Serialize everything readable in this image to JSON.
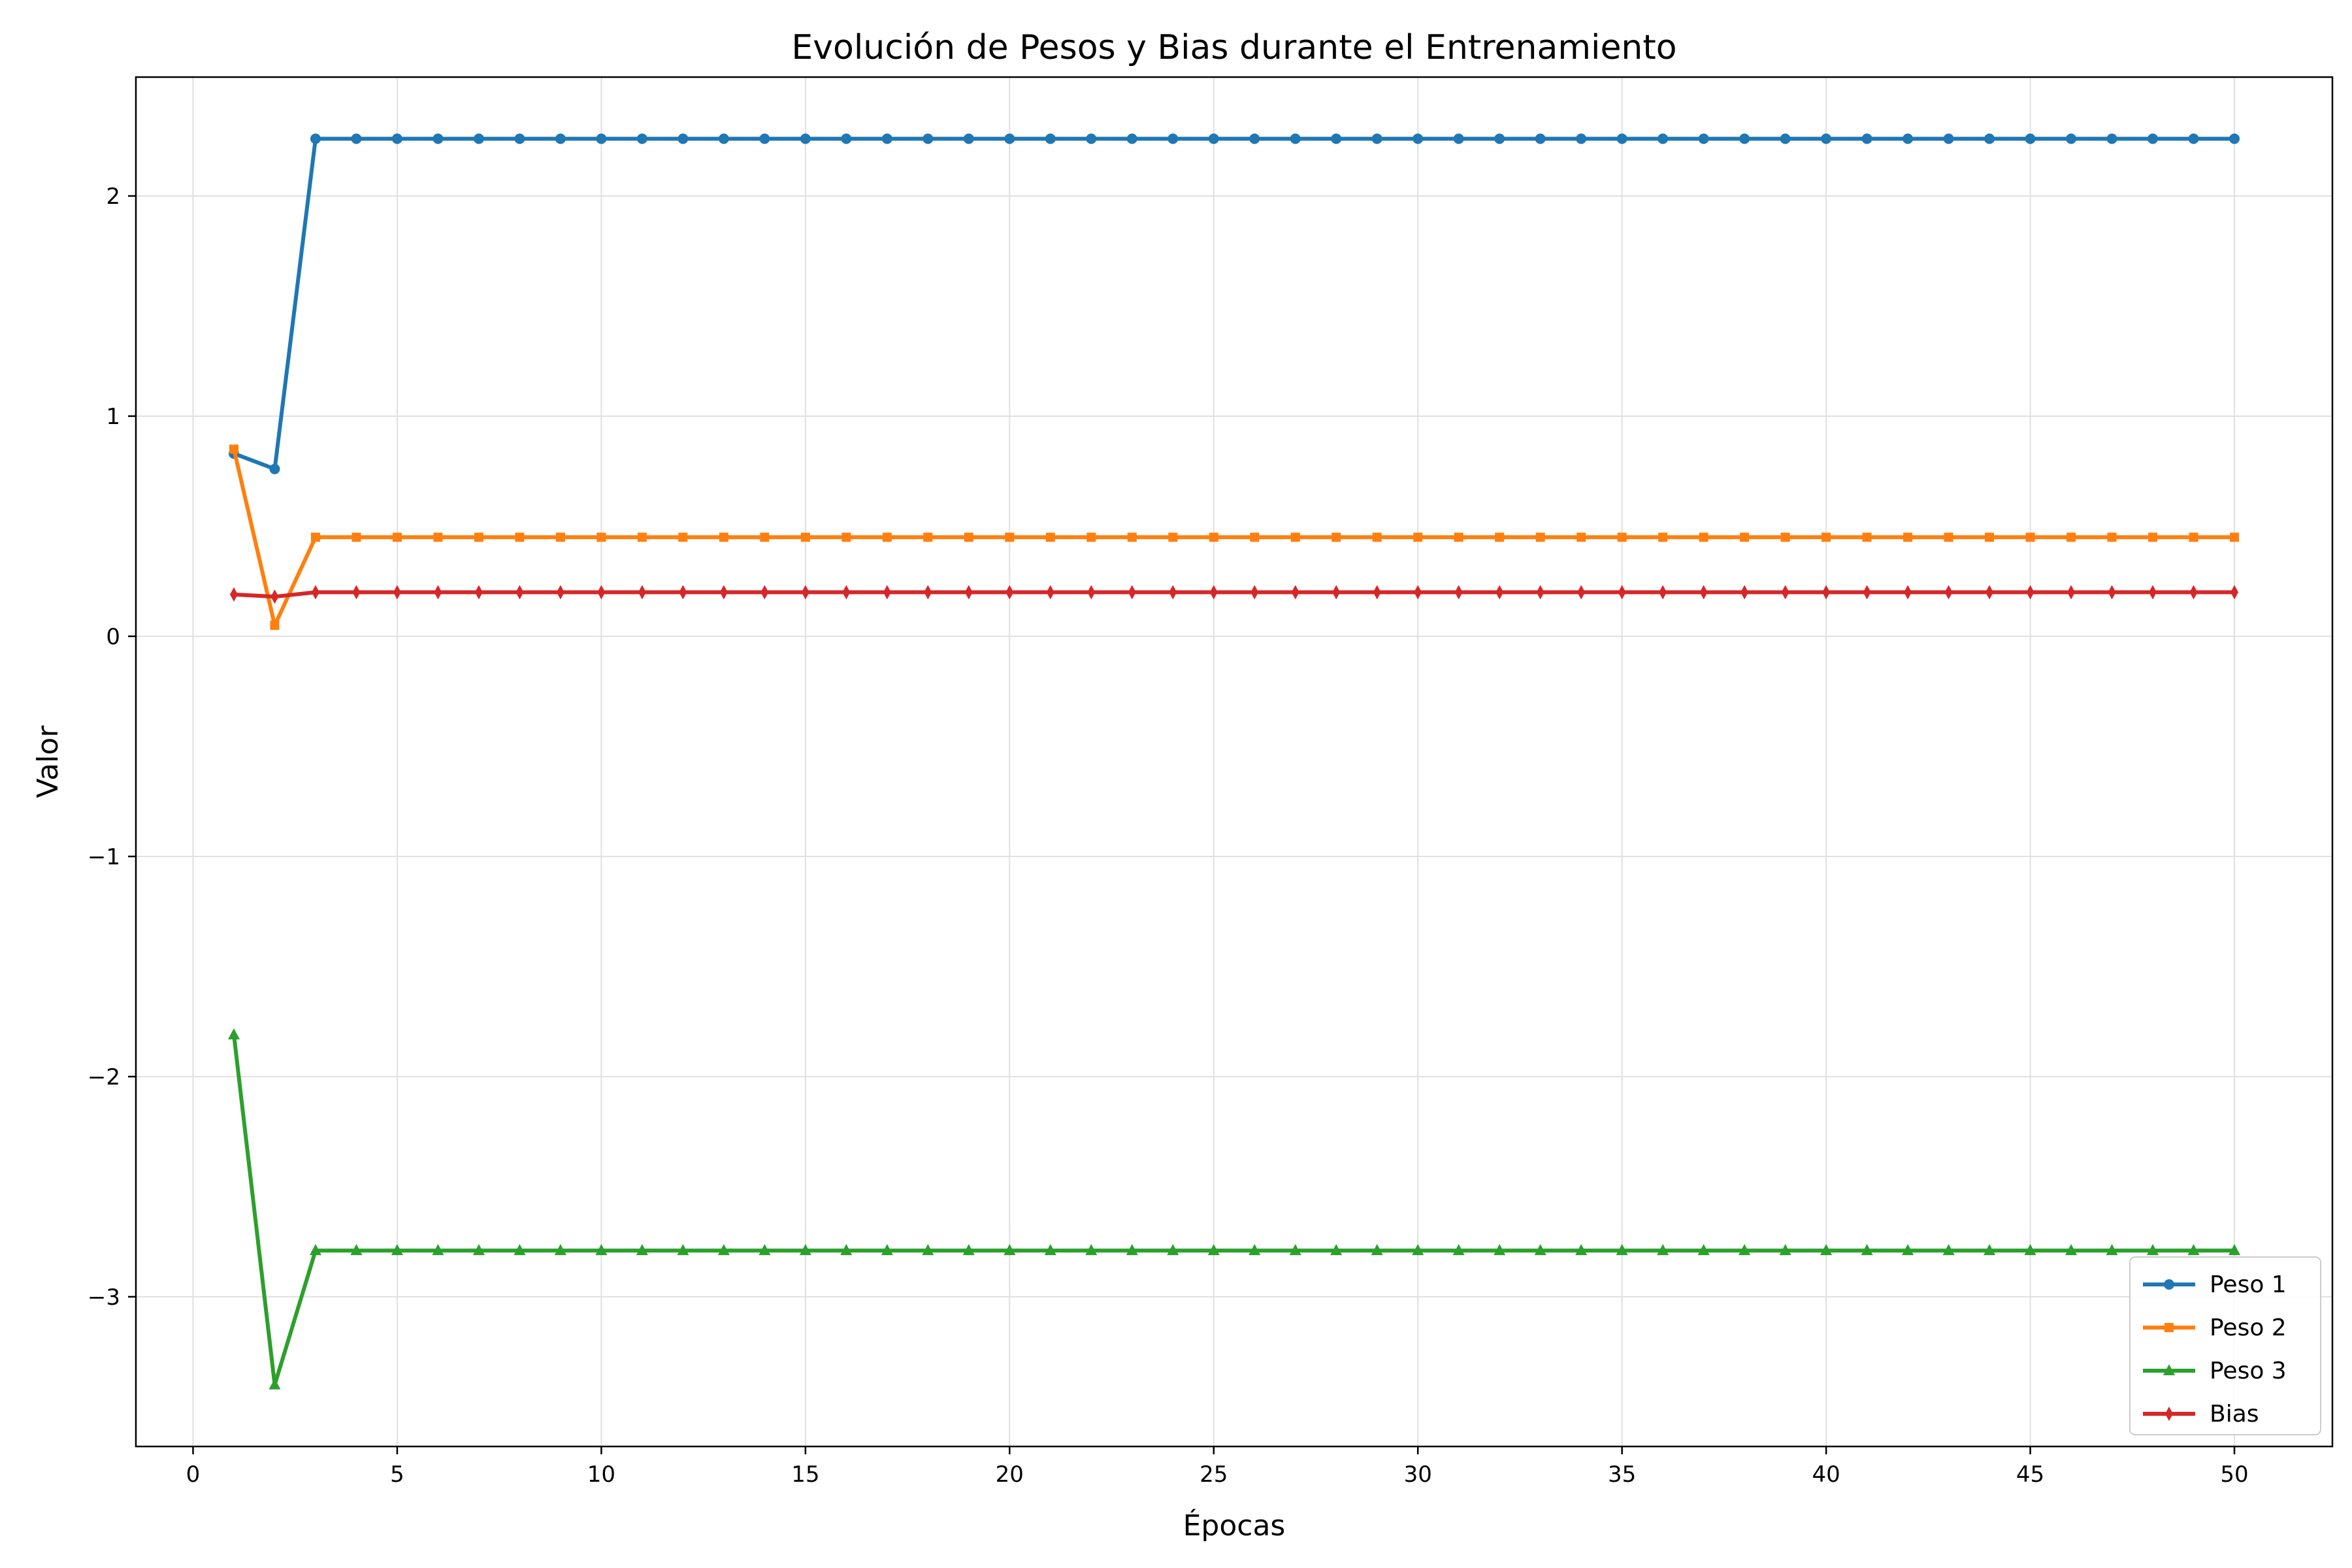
{
  "chart_data": {
    "type": "line",
    "title": "Evolución de Pesos y Bias durante el Entrenamiento",
    "xlabel": "Épocas",
    "ylabel": "Valor",
    "xlim": [
      -1.4,
      52.4
    ],
    "ylim": [
      -3.68,
      2.54
    ],
    "xticks": [
      0,
      5,
      10,
      15,
      20,
      25,
      30,
      35,
      40,
      45,
      50
    ],
    "xtick_labels": [
      "0",
      "5",
      "10",
      "15",
      "20",
      "25",
      "30",
      "35",
      "40",
      "45",
      "50"
    ],
    "yticks": [
      -3,
      -2,
      -1,
      0,
      1,
      2
    ],
    "ytick_labels": [
      "−3",
      "−2",
      "−1",
      "0",
      "1",
      "2"
    ],
    "grid": true,
    "legend_position": "lower-right",
    "x_start": 1,
    "x_end": 50,
    "series": [
      {
        "name": "Peso 1",
        "color": "#1f77b4",
        "marker": "circle",
        "early_values": [
          0.83,
          0.76
        ],
        "steady_value": 2.26
      },
      {
        "name": "Peso 2",
        "color": "#ff7f0e",
        "marker": "square",
        "early_values": [
          0.85,
          0.05
        ],
        "steady_value": 0.45
      },
      {
        "name": "Peso 3",
        "color": "#2ca02c",
        "marker": "triangle",
        "early_values": [
          -1.81,
          -3.4
        ],
        "steady_value": -2.79
      },
      {
        "name": "Bias",
        "color": "#d62728",
        "marker": "diamond",
        "early_values": [
          0.19,
          0.18
        ],
        "steady_value": 0.2
      }
    ]
  }
}
